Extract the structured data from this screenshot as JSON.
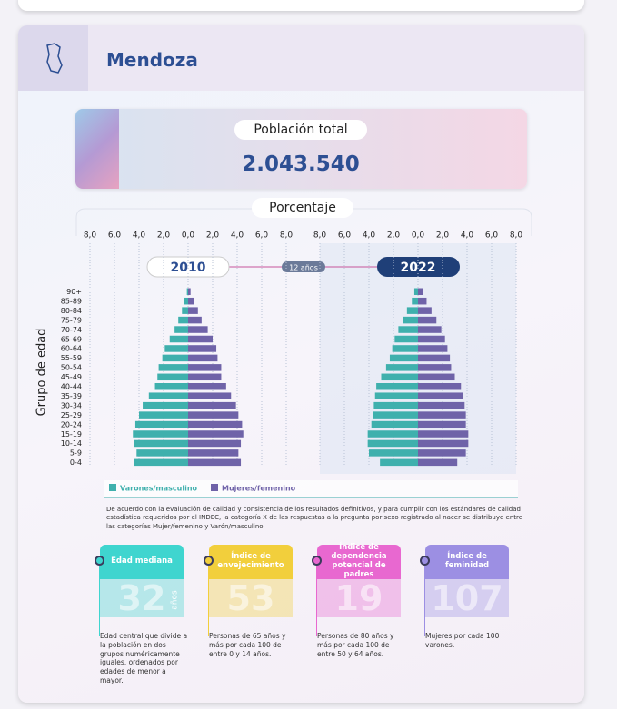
{
  "header": {
    "title": "Mendoza"
  },
  "population": {
    "label": "Población total",
    "value": "2.043.540"
  },
  "axis_title": "Porcentaje",
  "interval": "12 años",
  "y_axis_title": "Grupo de edad",
  "chart_data": [
    {
      "type": "pyramid",
      "title": "2010",
      "categories": [
        "90+",
        "85-89",
        "80-84",
        "75-79",
        "70-74",
        "65-69",
        "60-64",
        "55-59",
        "50-54",
        "45-49",
        "40-44",
        "35-39",
        "30-34",
        "25-29",
        "20-24",
        "15-19",
        "10-14",
        "5-9",
        "0-4"
      ],
      "series": [
        {
          "name": "Varones/masculino",
          "color": "#3fb0ad",
          "values": [
            0.1,
            0.3,
            0.5,
            0.8,
            1.1,
            1.5,
            1.9,
            2.1,
            2.4,
            2.5,
            2.7,
            3.2,
            3.7,
            4.0,
            4.3,
            4.5,
            4.4,
            4.2,
            4.4
          ]
        },
        {
          "name": "Mujeres/femenino",
          "color": "#6f63a8",
          "values": [
            0.2,
            0.5,
            0.8,
            1.1,
            1.6,
            2.0,
            2.3,
            2.4,
            2.7,
            2.7,
            3.1,
            3.5,
            3.9,
            4.1,
            4.4,
            4.5,
            4.3,
            4.1,
            4.3
          ]
        }
      ],
      "xlim": [
        -8,
        8
      ],
      "xticks": [
        {
          "value": -8,
          "label": "8,0"
        },
        {
          "value": -6,
          "label": "6,0"
        },
        {
          "value": -4,
          "label": "4,0"
        },
        {
          "value": -2,
          "label": "2,0"
        },
        {
          "value": 0,
          "label": "0,0"
        },
        {
          "value": 2,
          "label": "2,0"
        },
        {
          "value": 4,
          "label": "4,0"
        },
        {
          "value": 6,
          "label": "6,0"
        },
        {
          "value": 8,
          "label": "8,0"
        }
      ]
    },
    {
      "type": "pyramid",
      "title": "2022",
      "series": [
        {
          "color": "#3fb0ad",
          "values": [
            0.3,
            0.5,
            0.9,
            1.2,
            1.6,
            1.9,
            2.1,
            2.3,
            2.6,
            3.0,
            3.4,
            3.5,
            3.6,
            3.7,
            3.8,
            4.1,
            4.1,
            4.0,
            3.1
          ]
        },
        {
          "color": "#6f63a8",
          "values": [
            0.4,
            0.7,
            1.1,
            1.5,
            1.9,
            2.2,
            2.4,
            2.6,
            2.7,
            3.0,
            3.5,
            3.7,
            3.8,
            3.9,
            3.9,
            4.1,
            4.1,
            3.9,
            3.2
          ]
        }
      ],
      "xlim": [
        -8,
        8
      ],
      "xticks": [
        {
          "value": -8,
          "label": "8,0"
        },
        {
          "value": -6,
          "label": "6,0"
        },
        {
          "value": -4,
          "label": "4,0"
        },
        {
          "value": -2,
          "label": "2,0"
        },
        {
          "value": 0,
          "label": "0,0"
        },
        {
          "value": 2,
          "label": "2,0"
        },
        {
          "value": 4,
          "label": "4,0"
        },
        {
          "value": 6,
          "label": "6,0"
        },
        {
          "value": 8,
          "label": "8,0"
        }
      ]
    }
  ],
  "note": "De acuerdo con la evaluación de calidad y consistencia de los resultados definitivos, y para cumplir con los estándares de calidad estadística requeridos por el INDEC, la categoría X de las respuestas a la pregunta por sexo registrado al nacer se distribuye entre las categorías Mujer/femenino y Varón/masculino.",
  "indicators": [
    {
      "title": "Edad mediana",
      "value": 32,
      "unit": "años",
      "color": "#3fd5cf",
      "description": "Edad central que divide a la población en dos grupos numéricamente iguales, ordenados por edades de menor a mayor."
    },
    {
      "title": "Índice de envejecimiento",
      "value": 53,
      "color": "#f2cf3c",
      "description": "Personas de 65 años y más por cada 100 de entre 0 y 14 años."
    },
    {
      "title": "Índice de dependencia potencial de padres",
      "value": 19,
      "color": "#e868d0",
      "description": "Personas de 80 años y más por cada 100 de entre 50 y 64 años."
    },
    {
      "title": "Índice de feminidad",
      "value": 107,
      "color": "#9c8fe3",
      "description": "Mujeres por cada 100 varones."
    }
  ]
}
